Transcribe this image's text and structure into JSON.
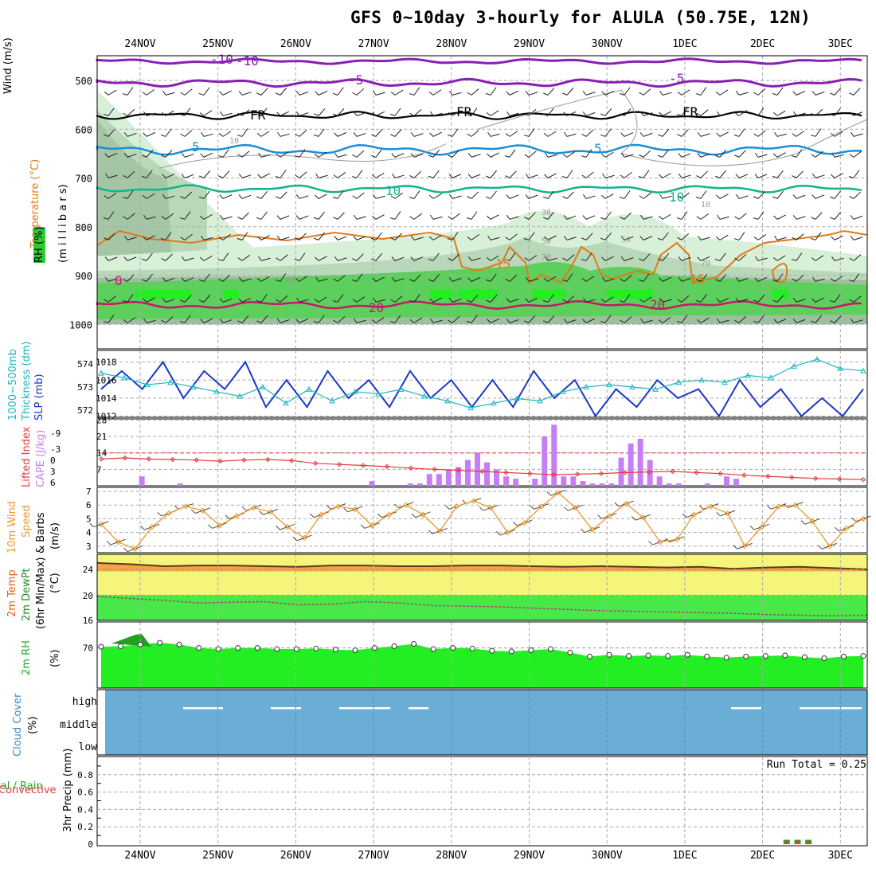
{
  "title": "GFS 0~10day 3-hourly for ALULA (50.75E, 12N)",
  "dates": [
    "24NOV",
    "25NOV",
    "26NOV",
    "27NOV",
    "28NOV",
    "29NOV",
    "30NOV",
    "1DEC",
    "2DEC",
    "3DEC"
  ],
  "colors": {
    "purple": "#8a1fb3",
    "black": "#000000",
    "blue": "#1c8fd8",
    "teal": "#12b48a",
    "orange": "#e07a1a",
    "magenta": "#c8166e",
    "green": "#2ecc2e",
    "brightgreen": "#22ee22",
    "lightgreen": "#d8efd8",
    "gray": "#9a9a9a",
    "cloud": "#6aaed6",
    "slp": "#1a37c8",
    "thick": "#1ab6c0",
    "cape": "#c77ef5",
    "li": "#e03b3b",
    "wind10": "#e89a2e",
    "temp": "#f5a540",
    "dew": "#48e848",
    "yellow": "#f4f57a"
  },
  "labels": {
    "p1": [
      "Wind (m/s)",
      "Temperature (°C)",
      "RH (%)",
      "(m i l l i b a r s)"
    ],
    "p2": [
      "1000~500mb",
      "Thickness (dm)",
      "SLP (mb)"
    ],
    "p3": [
      "Lifted Index",
      "CAPE (J/kg)"
    ],
    "p4": [
      "10m Wind",
      "Speed",
      "& Barbs",
      "(m/s)"
    ],
    "p5": [
      "2m Temp",
      "2m DewPt",
      "(6hr Min/Max)",
      "(°C)"
    ],
    "p6": [
      "2m RH",
      "(%)"
    ],
    "p7": [
      "Cloud Cover",
      "(%)"
    ],
    "p8": [
      "Total / Rain",
      "Convective",
      "3hr Precip (mm)"
    ],
    "run_total": "Run Total = 0.25"
  },
  "pressure_ticks": [
    "500",
    "600",
    "700",
    "800",
    "900",
    "1000"
  ],
  "contour_labels": [
    "-10",
    "-5",
    "5",
    "FR",
    "FR",
    "FR",
    "-5",
    "5",
    "10",
    "10",
    "0",
    "15",
    "15",
    "20",
    "20",
    "-10",
    "10",
    "10",
    "30",
    "50",
    "70",
    "70",
    "50",
    "50"
  ],
  "panel_ticks": {
    "slp": [
      "1018",
      "1016",
      "1014",
      "1012"
    ],
    "thickness": [
      "574",
      "573",
      "572"
    ],
    "cape": [
      "28",
      "21",
      "14",
      "7"
    ],
    "li": [
      "-9",
      "-3",
      "0",
      "3",
      "6"
    ],
    "wind10": [
      "7",
      "6",
      "5",
      "4",
      "3"
    ],
    "temp": [
      "24",
      "20",
      "16"
    ],
    "rh": [
      "70"
    ],
    "cloud": [
      "high",
      "middle",
      "low"
    ],
    "precip": [
      "0.8",
      "0.6",
      "0.4",
      "0.2",
      "0"
    ]
  },
  "chart_data": [
    {
      "type": "line",
      "title": "1000~500mb Thickness / SLP",
      "series": [
        {
          "name": "SLP (mb)",
          "values": [
            1015,
            1017,
            1015,
            1018,
            1014,
            1017,
            1015,
            1018,
            1013,
            1016,
            1013,
            1017,
            1014,
            1016,
            1013,
            1017,
            1014,
            1016,
            1013,
            1016,
            1013,
            1017,
            1014,
            1016,
            1012,
            1015,
            1013,
            1016,
            1014,
            1015,
            1012,
            1016,
            1013,
            1015,
            1012,
            1014,
            1012,
            1015
          ]
        },
        {
          "name": "Thickness (dm)",
          "values": [
            573.6,
            573.4,
            573.1,
            573.2,
            573.0,
            572.8,
            572.6,
            573.0,
            572.3,
            572.9,
            572.4,
            572.8,
            572.7,
            572.9,
            572.6,
            572.4,
            572.1,
            572.3,
            572.5,
            572.4,
            572.8,
            573.0,
            573.1,
            573.0,
            572.9,
            573.2,
            573.3,
            573.2,
            573.5,
            573.4,
            573.9,
            574.2,
            573.8,
            573.7
          ]
        }
      ]
    },
    {
      "type": "bar",
      "title": "CAPE (J/kg)",
      "ylim": [
        0,
        28
      ],
      "values": [
        0,
        0,
        0,
        0,
        4,
        0,
        0,
        0,
        1,
        0,
        0,
        0,
        0,
        0,
        0,
        0,
        0,
        0,
        0,
        0,
        0,
        0,
        0,
        0,
        0,
        0,
        0,
        0,
        2,
        0,
        0,
        0,
        1,
        1,
        5,
        5,
        7,
        8,
        11,
        14,
        10,
        7,
        4,
        3,
        0,
        3,
        21,
        26,
        4,
        4,
        2,
        1,
        1,
        1,
        12,
        18,
        20,
        11,
        4,
        1,
        1,
        0,
        0,
        1,
        0,
        4,
        3,
        0,
        0,
        0,
        0,
        0,
        0,
        0,
        0,
        0,
        0,
        0,
        0,
        0
      ]
    },
    {
      "type": "line",
      "title": "Lifted Index",
      "ylim": [
        6,
        -9
      ],
      "values": [
        2.2,
        2.0,
        2.2,
        2.3,
        2.4,
        2.6,
        2.4,
        2.3,
        2.5,
        3.0,
        3.2,
        3.4,
        3.6,
        3.9,
        4.1,
        4.3,
        4.5,
        4.7,
        4.9,
        5.1,
        5.0,
        4.9,
        4.7,
        4.6,
        4.5,
        4.7,
        4.9,
        5.2,
        5.4,
        5.6,
        5.8,
        5.9,
        6.0
      ]
    },
    {
      "type": "line",
      "title": "10m Wind Speed (m/s)",
      "ylim": [
        2.5,
        7.2
      ],
      "values": [
        4.6,
        3.3,
        2.8,
        4.4,
        5.4,
        5.9,
        5.6,
        4.5,
        5.2,
        5.8,
        5.5,
        4.4,
        3.6,
        5.3,
        5.9,
        5.7,
        4.5,
        5.3,
        6.0,
        5.3,
        4.1,
        5.9,
        6.3,
        5.8,
        4.0,
        4.7,
        5.9,
        6.9,
        5.8,
        4.2,
        5.2,
        6.1,
        5.1,
        3.3,
        3.5,
        5.3,
        5.9,
        5.4,
        3.0,
        4.4,
        5.9,
        6.0,
        4.8,
        3.0,
        4.3,
        5.0
      ]
    },
    {
      "type": "area",
      "title": "2m Temp / 2m DewPt (°C)",
      "ylim": [
        16,
        25
      ],
      "series": [
        {
          "name": "2m Temp",
          "values": [
            25.0,
            24.8,
            24.5,
            24.6,
            24.6,
            24.5,
            24.4,
            24.6,
            24.6,
            24.5,
            24.5,
            24.6,
            24.6,
            24.5,
            24.4,
            24.5,
            24.4,
            24.3,
            24.4,
            24.1,
            24.3,
            24.4,
            24.2,
            24.0
          ]
        },
        {
          "name": "2m DewPt",
          "values": [
            19.8,
            19.5,
            19.2,
            18.8,
            18.9,
            19.0,
            18.5,
            18.6,
            19.0,
            18.8,
            18.4,
            18.3,
            18.2,
            18.0,
            17.8,
            17.6,
            17.5,
            17.4,
            17.3,
            17.2,
            17.0,
            16.9,
            16.8,
            16.9
          ]
        }
      ]
    },
    {
      "type": "area",
      "title": "2m RH (%)",
      "ylim": [
        0,
        100
      ],
      "values": [
        72,
        73,
        76,
        79,
        76,
        70,
        68,
        70,
        70,
        68,
        68,
        69,
        67,
        66,
        70,
        73,
        77,
        68,
        70,
        69,
        65,
        64,
        66,
        68,
        62,
        55,
        58,
        56,
        57,
        56,
        58,
        55,
        53,
        55,
        56,
        57,
        54,
        52,
        55,
        56
      ]
    },
    {
      "type": "bar",
      "title": "3hr Precip (mm)",
      "ylim": [
        0,
        1
      ],
      "xlabel": "",
      "ylabel": "3hr Precip (mm)",
      "values": [
        0,
        0,
        0,
        0,
        0,
        0,
        0,
        0,
        0,
        0,
        0,
        0,
        0,
        0,
        0,
        0,
        0,
        0,
        0,
        0,
        0,
        0,
        0,
        0,
        0,
        0,
        0,
        0,
        0,
        0,
        0,
        0,
        0,
        0,
        0,
        0,
        0,
        0,
        0,
        0,
        0.05,
        0.05,
        0.05,
        0,
        0,
        0,
        0,
        0,
        0,
        0,
        0.05
      ]
    }
  ]
}
